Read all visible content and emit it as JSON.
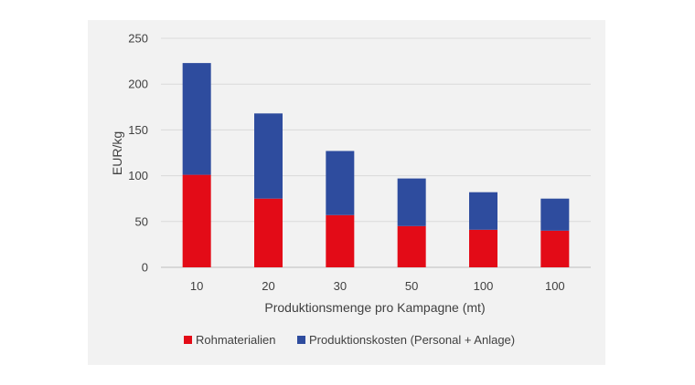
{
  "chart_data": {
    "type": "bar",
    "stacked": true,
    "categories": [
      "10",
      "20",
      "30",
      "50",
      "100",
      "100"
    ],
    "series": [
      {
        "name": "Rohmaterialien",
        "color": "#e30b17",
        "values": [
          101,
          75,
          57,
          45,
          41,
          40
        ]
      },
      {
        "name": "Produktionskosten (Personal  + Anlage)",
        "color": "#2e4c9e",
        "values": [
          122,
          93,
          70,
          52,
          41,
          35
        ]
      }
    ],
    "title": "",
    "xlabel": "Produktionsmenge pro Kampagne (mt)",
    "ylabel": "EUR/kg",
    "ylim": [
      0,
      250
    ],
    "yticks": [
      0,
      50,
      100,
      150,
      200,
      250
    ],
    "grid": true,
    "legend_position": "bottom"
  }
}
